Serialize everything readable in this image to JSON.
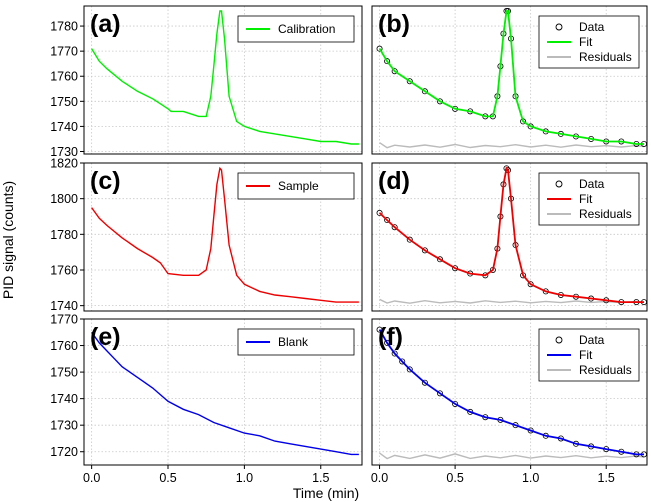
{
  "figure": {
    "ylabel": "PID signal  (counts)",
    "xlabel": "Time  (min)"
  },
  "chart_data": [
    {
      "id": "a",
      "panel_label": "(a)",
      "type": "line",
      "color": "#00ee00",
      "xlim": [
        -0.05,
        1.77
      ],
      "ylim": [
        1729,
        1788
      ],
      "yticks": [
        1730,
        1740,
        1750,
        1760,
        1770,
        1780
      ],
      "xticks": [
        0.0,
        0.5,
        1.0,
        1.5
      ],
      "show_yticks": true,
      "show_xticks": false,
      "legend": [
        {
          "label": "Calibration",
          "kind": "line",
          "color": "#00ee00"
        }
      ],
      "series": [
        {
          "name": "Calibration",
          "x": [
            0.0,
            0.05,
            0.1,
            0.2,
            0.3,
            0.4,
            0.45,
            0.5,
            0.52,
            0.6,
            0.7,
            0.75,
            0.78,
            0.8,
            0.82,
            0.84,
            0.85,
            0.87,
            0.9,
            0.95,
            1.0,
            1.1,
            1.2,
            1.3,
            1.4,
            1.5,
            1.6,
            1.7,
            1.75
          ],
          "y": [
            1771,
            1766,
            1763,
            1758,
            1754,
            1751,
            1749,
            1747,
            1746,
            1746,
            1744,
            1744,
            1752,
            1764,
            1777,
            1786,
            1786,
            1775,
            1752,
            1742,
            1740,
            1738,
            1737,
            1736,
            1735,
            1734,
            1734,
            1733,
            1733
          ]
        }
      ]
    },
    {
      "id": "b",
      "panel_label": "(b)",
      "type": "scatter+line",
      "xlim": [
        -0.05,
        1.77
      ],
      "ylim": [
        1729,
        1788
      ],
      "yticks": [
        1730,
        1740,
        1750,
        1760,
        1770,
        1780
      ],
      "xticks": [
        0.0,
        0.5,
        1.0,
        1.5
      ],
      "show_yticks": false,
      "show_xticks": false,
      "legend": [
        {
          "label": "Data",
          "kind": "marker",
          "color": "#000000"
        },
        {
          "label": "Fit",
          "kind": "line",
          "color": "#00ee00"
        },
        {
          "label": "Residuals",
          "kind": "line",
          "color": "#bbbbbb"
        }
      ],
      "residual_baseline": 1733,
      "series": [
        {
          "name": "Data",
          "x": [
            0.0,
            0.05,
            0.1,
            0.2,
            0.3,
            0.4,
            0.5,
            0.6,
            0.7,
            0.75,
            0.78,
            0.8,
            0.82,
            0.84,
            0.85,
            0.87,
            0.9,
            0.95,
            1.0,
            1.1,
            1.2,
            1.3,
            1.4,
            1.5,
            1.6,
            1.7,
            1.75
          ],
          "y": [
            1771,
            1766,
            1762,
            1758,
            1754,
            1750,
            1747,
            1746,
            1744,
            1744,
            1752,
            1764,
            1777,
            1786,
            1786,
            1775,
            1752,
            1742,
            1740,
            1738,
            1737,
            1736,
            1735,
            1734,
            1734,
            1733,
            1733
          ]
        },
        {
          "name": "Fit",
          "x": [
            0.0,
            0.05,
            0.1,
            0.2,
            0.3,
            0.4,
            0.5,
            0.6,
            0.7,
            0.75,
            0.78,
            0.8,
            0.82,
            0.84,
            0.85,
            0.87,
            0.9,
            0.95,
            1.0,
            1.1,
            1.2,
            1.3,
            1.4,
            1.5,
            1.6,
            1.7,
            1.75
          ],
          "y": [
            1771,
            1766,
            1762,
            1758,
            1754,
            1750,
            1747,
            1746,
            1744,
            1744,
            1752,
            1764,
            1777,
            1786,
            1786,
            1775,
            1752,
            1742,
            1740,
            1738,
            1737,
            1736,
            1735,
            1734,
            1734,
            1733,
            1733
          ]
        },
        {
          "name": "Residuals",
          "x": [
            0.0,
            0.05,
            0.1,
            0.2,
            0.3,
            0.4,
            0.5,
            0.6,
            0.7,
            0.8,
            0.9,
            1.0,
            1.1,
            1.2,
            1.3,
            1.4,
            1.5,
            1.6,
            1.7,
            1.75
          ],
          "y": [
            1733.5,
            1731.5,
            1732.5,
            1731.8,
            1732.6,
            1731.7,
            1732.8,
            1731.6,
            1732.4,
            1731.9,
            1732.7,
            1731.8,
            1732.5,
            1731.7,
            1732.6,
            1731.9,
            1732.3,
            1731.8,
            1732.4,
            1732.0
          ]
        }
      ]
    },
    {
      "id": "c",
      "panel_label": "(c)",
      "type": "line",
      "color": "#ee0000",
      "xlim": [
        -0.05,
        1.77
      ],
      "ylim": [
        1737,
        1820
      ],
      "yticks": [
        1740,
        1760,
        1780,
        1800,
        1820
      ],
      "xticks": [
        0.0,
        0.5,
        1.0,
        1.5
      ],
      "show_yticks": true,
      "show_xticks": false,
      "legend": [
        {
          "label": "Sample",
          "kind": "line",
          "color": "#ee0000"
        }
      ],
      "series": [
        {
          "name": "Sample",
          "x": [
            0.0,
            0.05,
            0.1,
            0.2,
            0.3,
            0.4,
            0.45,
            0.5,
            0.6,
            0.7,
            0.75,
            0.78,
            0.8,
            0.82,
            0.84,
            0.85,
            0.87,
            0.9,
            0.95,
            1.0,
            1.1,
            1.2,
            1.3,
            1.4,
            1.5,
            1.6,
            1.7,
            1.75
          ],
          "y": [
            1795,
            1789,
            1785,
            1778,
            1772,
            1767,
            1764,
            1758,
            1757,
            1757,
            1760,
            1772,
            1790,
            1808,
            1817,
            1816,
            1800,
            1774,
            1757,
            1752,
            1748,
            1746,
            1745,
            1744,
            1743,
            1742,
            1742,
            1742
          ]
        }
      ]
    },
    {
      "id": "d",
      "panel_label": "(d)",
      "type": "scatter+line",
      "xlim": [
        -0.05,
        1.77
      ],
      "ylim": [
        1737,
        1820
      ],
      "yticks": [
        1740,
        1760,
        1780,
        1800,
        1820
      ],
      "xticks": [
        0.0,
        0.5,
        1.0,
        1.5
      ],
      "show_yticks": false,
      "show_xticks": false,
      "legend": [
        {
          "label": "Data",
          "kind": "marker",
          "color": "#000000"
        },
        {
          "label": "Fit",
          "kind": "line",
          "color": "#ee0000"
        },
        {
          "label": "Residuals",
          "kind": "line",
          "color": "#bbbbbb"
        }
      ],
      "residual_baseline": 1742,
      "series": [
        {
          "name": "Data",
          "x": [
            0.0,
            0.05,
            0.1,
            0.2,
            0.3,
            0.4,
            0.5,
            0.6,
            0.7,
            0.75,
            0.78,
            0.8,
            0.82,
            0.84,
            0.85,
            0.87,
            0.9,
            0.95,
            1.0,
            1.1,
            1.2,
            1.3,
            1.4,
            1.5,
            1.6,
            1.7,
            1.75
          ],
          "y": [
            1792,
            1788,
            1784,
            1777,
            1771,
            1766,
            1761,
            1758,
            1757,
            1760,
            1772,
            1790,
            1808,
            1817,
            1816,
            1800,
            1774,
            1757,
            1752,
            1748,
            1746,
            1745,
            1744,
            1743,
            1742,
            1742,
            1742
          ]
        },
        {
          "name": "Fit",
          "x": [
            0.0,
            0.05,
            0.1,
            0.2,
            0.3,
            0.4,
            0.5,
            0.6,
            0.7,
            0.75,
            0.78,
            0.8,
            0.82,
            0.84,
            0.85,
            0.87,
            0.9,
            0.95,
            1.0,
            1.1,
            1.2,
            1.3,
            1.4,
            1.5,
            1.6,
            1.7,
            1.75
          ],
          "y": [
            1792,
            1788,
            1784,
            1777,
            1771,
            1766,
            1761,
            1758,
            1757,
            1760,
            1772,
            1790,
            1808,
            1817,
            1816,
            1800,
            1774,
            1757,
            1752,
            1748,
            1746,
            1745,
            1744,
            1743,
            1742,
            1742,
            1742
          ]
        },
        {
          "name": "Residuals",
          "x": [
            0.0,
            0.05,
            0.1,
            0.2,
            0.3,
            0.4,
            0.5,
            0.6,
            0.7,
            0.8,
            0.9,
            1.0,
            1.1,
            1.2,
            1.3,
            1.4,
            1.5,
            1.6,
            1.7,
            1.75
          ],
          "y": [
            1743.5,
            1741.5,
            1742.6,
            1741.4,
            1742.8,
            1741.6,
            1742.4,
            1741.5,
            1742.7,
            1741.8,
            1742.5,
            1741.6,
            1742.4,
            1741.7,
            1742.6,
            1741.8,
            1742.3,
            1741.7,
            1742.4,
            1742.0
          ]
        }
      ]
    },
    {
      "id": "e",
      "panel_label": "(e)",
      "type": "line",
      "color": "#0000ee",
      "xlim": [
        -0.05,
        1.77
      ],
      "ylim": [
        1715,
        1770
      ],
      "yticks": [
        1720,
        1730,
        1740,
        1750,
        1760,
        1770
      ],
      "xticks": [
        0.0,
        0.5,
        1.0,
        1.5
      ],
      "show_yticks": true,
      "show_xticks": true,
      "legend": [
        {
          "label": "Blank",
          "kind": "line",
          "color": "#0000ee"
        }
      ],
      "series": [
        {
          "name": "Blank",
          "x": [
            0.0,
            0.05,
            0.1,
            0.15,
            0.2,
            0.3,
            0.4,
            0.5,
            0.6,
            0.7,
            0.8,
            0.9,
            1.0,
            1.1,
            1.2,
            1.3,
            1.4,
            1.5,
            1.6,
            1.7,
            1.75
          ],
          "y": [
            1765,
            1761,
            1758,
            1755,
            1752,
            1748,
            1744,
            1739,
            1736,
            1734,
            1731,
            1729,
            1727,
            1726,
            1724,
            1723,
            1722,
            1721,
            1720,
            1719,
            1719
          ]
        }
      ]
    },
    {
      "id": "f",
      "panel_label": "(f)",
      "type": "scatter+line",
      "xlim": [
        -0.05,
        1.77
      ],
      "ylim": [
        1715,
        1770
      ],
      "yticks": [
        1720,
        1730,
        1740,
        1750,
        1760,
        1770
      ],
      "xticks": [
        0.0,
        0.5,
        1.0,
        1.5
      ],
      "show_yticks": false,
      "show_xticks": true,
      "legend": [
        {
          "label": "Data",
          "kind": "marker",
          "color": "#000000"
        },
        {
          "label": "Fit",
          "kind": "line",
          "color": "#0000ee"
        },
        {
          "label": "Residuals",
          "kind": "line",
          "color": "#bbbbbb"
        }
      ],
      "residual_baseline": 1718,
      "series": [
        {
          "name": "Data",
          "x": [
            0.0,
            0.05,
            0.1,
            0.15,
            0.2,
            0.3,
            0.4,
            0.5,
            0.6,
            0.7,
            0.8,
            0.9,
            1.0,
            1.1,
            1.2,
            1.3,
            1.4,
            1.5,
            1.6,
            1.7,
            1.75
          ],
          "y": [
            1766,
            1761,
            1757,
            1754,
            1751,
            1746,
            1742,
            1738,
            1735,
            1733,
            1732,
            1730,
            1728,
            1726,
            1725,
            1723,
            1722,
            1721,
            1720,
            1719,
            1719
          ]
        },
        {
          "name": "Fit",
          "x": [
            0.0,
            0.05,
            0.1,
            0.15,
            0.2,
            0.3,
            0.4,
            0.5,
            0.6,
            0.7,
            0.8,
            0.9,
            1.0,
            1.1,
            1.2,
            1.3,
            1.4,
            1.5,
            1.6,
            1.7,
            1.75
          ],
          "y": [
            1766,
            1761,
            1757,
            1754,
            1751,
            1746,
            1742,
            1738,
            1735,
            1733,
            1732,
            1730,
            1728,
            1726,
            1725,
            1723,
            1722,
            1721,
            1720,
            1719,
            1719
          ]
        },
        {
          "name": "Residuals",
          "x": [
            0.0,
            0.05,
            0.1,
            0.2,
            0.3,
            0.4,
            0.5,
            0.6,
            0.7,
            0.8,
            0.9,
            1.0,
            1.1,
            1.2,
            1.3,
            1.4,
            1.5,
            1.6,
            1.7,
            1.75
          ],
          "y": [
            1719.5,
            1717.4,
            1718.6,
            1717.5,
            1718.8,
            1717.6,
            1719.2,
            1717.5,
            1718.4,
            1717.7,
            1718.6,
            1717.6,
            1718.4,
            1717.8,
            1718.5,
            1717.7,
            1718.3,
            1717.8,
            1718.4,
            1718.0
          ]
        }
      ]
    }
  ]
}
